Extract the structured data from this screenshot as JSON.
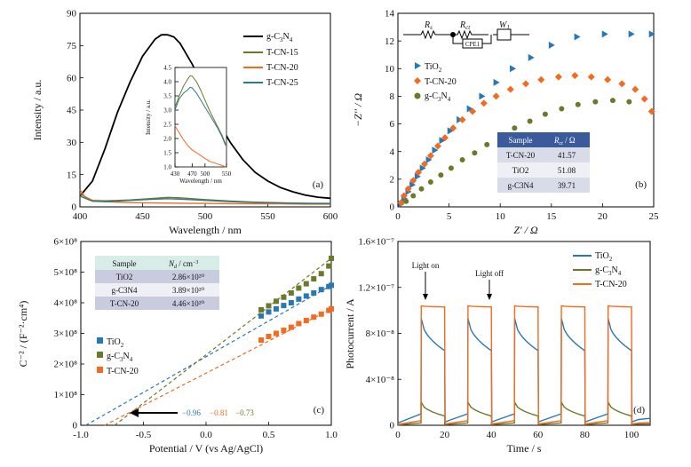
{
  "chart_data": [
    {
      "panel": "(a)",
      "type": "line",
      "xlabel": "Wavelength / nm",
      "ylabel": "Intensity / a.u.",
      "xlim": [
        400,
        600
      ],
      "ylim": [
        0,
        90
      ],
      "xticks": [
        "400",
        "450",
        "500",
        "550",
        "600"
      ],
      "yticks": [
        "0",
        "15",
        "30",
        "45",
        "60",
        "75",
        "90"
      ],
      "legend_position": "top-right",
      "legend": [
        "g-C3N4",
        "T-CN-15",
        "T-CN-20",
        "T-CN-25"
      ],
      "series": [
        {
          "name": "g-C3N4",
          "color": "#000000",
          "x": [
            400,
            410,
            420,
            430,
            440,
            450,
            460,
            465,
            470,
            475,
            480,
            490,
            500,
            510,
            520,
            530,
            540,
            550,
            560,
            570,
            580,
            590,
            600
          ],
          "y": [
            5,
            12,
            27,
            44,
            58,
            70,
            78,
            80,
            80,
            79,
            76,
            66,
            53,
            40,
            30,
            22,
            16,
            12,
            9,
            7,
            5.5,
            4.5,
            4
          ]
        },
        {
          "name": "T-CN-15",
          "color": "#6b7a2a",
          "x": [
            400,
            410,
            420,
            440,
            460,
            470,
            480,
            500,
            520,
            540,
            560,
            580,
            600
          ],
          "y": [
            6,
            3,
            2.8,
            3.2,
            4,
            4.4,
            4.2,
            3.4,
            2.7,
            2.2,
            1.9,
            1.7,
            1.6
          ]
        },
        {
          "name": "T-CN-20",
          "color": "#f26b21",
          "x": [
            400,
            404,
            410,
            420,
            440,
            460,
            480,
            500,
            520,
            540,
            560,
            580,
            600
          ],
          "y": [
            8,
            4.5,
            3,
            2.4,
            2,
            1.8,
            1.7,
            1.6,
            1.5,
            1.4,
            1.4,
            1.3,
            1.3
          ]
        },
        {
          "name": "T-CN-25",
          "color": "#2e7a87",
          "x": [
            400,
            410,
            420,
            440,
            460,
            470,
            480,
            500,
            520,
            540,
            560,
            580,
            600
          ],
          "y": [
            5,
            2.6,
            2.4,
            3,
            3.6,
            3.8,
            3.6,
            3,
            2.4,
            2,
            1.8,
            1.6,
            1.5
          ]
        }
      ],
      "inset": {
        "xlabel": "Wavelength / nm",
        "ylabel": "Intensity / a.u.",
        "xlim": [
          430,
          550
        ],
        "ylim": [
          1.0,
          4.5
        ],
        "xticks": [
          "430",
          "470",
          "500",
          "550"
        ],
        "yticks": [
          "1.0",
          "1.5",
          "2.0",
          "2.5",
          "3.0",
          "3.5",
          "4.0",
          "4.5"
        ],
        "series": [
          {
            "name": "T-CN-15",
            "color": "#6b7a2a",
            "x": [
              430,
              440,
              450,
              460,
              465,
              470,
              480,
              490,
              500,
              510,
              520,
              530,
              540,
              548
            ],
            "y": [
              3.1,
              3.5,
              3.85,
              4.1,
              4.2,
              4.2,
              4.0,
              3.7,
              3.35,
              3.0,
              2.7,
              2.4,
              2.1,
              1.8
            ]
          },
          {
            "name": "T-CN-25",
            "color": "#2e7a87",
            "x": [
              430,
              440,
              450,
              460,
              465,
              470,
              480,
              490,
              500,
              510,
              520,
              530,
              540,
              548
            ],
            "y": [
              3.0,
              3.4,
              3.6,
              3.72,
              3.8,
              3.78,
              3.6,
              3.35,
              3.1,
              2.85,
              2.6,
              2.35,
              2.05,
              1.75
            ]
          },
          {
            "name": "T-CN-20",
            "color": "#f26b21",
            "x": [
              430,
              440,
              450,
              460,
              470,
              480,
              490,
              500,
              510,
              520,
              530,
              540,
              548
            ],
            "y": [
              2.45,
              2.2,
              1.95,
              1.75,
              1.6,
              1.5,
              1.4,
              1.3,
              1.2,
              1.15,
              1.1,
              1.05,
              1.0
            ]
          }
        ]
      }
    },
    {
      "panel": "(b)",
      "type": "scatter",
      "xlabel": "Z′ / Ω",
      "ylabel": "−Z′′ / Ω",
      "xlim": [
        0,
        25
      ],
      "ylim": [
        0,
        14
      ],
      "xticks": [
        "0",
        "5",
        "10",
        "15",
        "20",
        "25"
      ],
      "yticks": [
        "0",
        "2",
        "4",
        "6",
        "8",
        "10",
        "12",
        "14"
      ],
      "legend": [
        "TiO2",
        "T-CN-20",
        "g-C3N4"
      ],
      "circuit_labels": [
        "R",
        "R",
        "W",
        "CPE1"
      ],
      "series": [
        {
          "name": "TiO2",
          "marker": "triangle",
          "color": "#2878b5",
          "x": [
            0.3,
            0.6,
            1,
            1.4,
            1.9,
            2.4,
            3,
            3.6,
            4.3,
            5.1,
            6,
            7,
            8.2,
            9.6,
            11.2,
            13,
            15,
            17.5,
            20.2,
            22.8,
            24.8
          ],
          "y": [
            0.2,
            0.6,
            1.1,
            1.6,
            2.2,
            2.8,
            3.4,
            4.1,
            4.8,
            5.5,
            6.3,
            7.1,
            8,
            9,
            10,
            10.8,
            11.7,
            12.3,
            12.5,
            12.5,
            12.5
          ]
        },
        {
          "name": "T-CN-20",
          "marker": "diamond",
          "color": "#f26b21",
          "x": [
            0.3,
            0.6,
            1,
            1.5,
            2,
            2.6,
            3.2,
            3.9,
            4.6,
            5.4,
            6.3,
            7.3,
            8.4,
            9.6,
            11,
            12.5,
            14,
            15.7,
            17.3,
            18.9,
            20.5,
            21.9,
            23.2,
            24.1,
            24.8
          ],
          "y": [
            0.3,
            0.8,
            1.3,
            1.9,
            2.5,
            3.1,
            3.7,
            4.4,
            5.0,
            5.7,
            6.3,
            6.9,
            7.5,
            8.0,
            8.5,
            8.9,
            9.2,
            9.4,
            9.5,
            9.4,
            9.2,
            8.9,
            8.5,
            7.8,
            6.9
          ]
        },
        {
          "name": "g-C3N4",
          "marker": "circle",
          "color": "#6b7a2a",
          "x": [
            0.8,
            1.5,
            2.3,
            3.2,
            4.2,
            5.2,
            6.3,
            7.5,
            8.7,
            10,
            11.4,
            12.9,
            14.4,
            16,
            17.6,
            19.3,
            21,
            22.6
          ],
          "y": [
            0.4,
            0.8,
            1.3,
            1.8,
            2.3,
            2.8,
            3.4,
            3.9,
            4.5,
            5.1,
            5.7,
            6.2,
            6.7,
            7.1,
            7.4,
            7.6,
            7.7,
            7.6
          ]
        }
      ],
      "table": {
        "headers": [
          "Sample",
          "Rct / Ω"
        ],
        "rows": [
          [
            "T-CN-20",
            "41.57"
          ],
          [
            "TiO2",
            "51.08"
          ],
          [
            "g-C3N4",
            "39.71"
          ]
        ]
      }
    },
    {
      "panel": "(c)",
      "type": "scatter",
      "xlabel": "Potential / V (vs Ag/AgCl)",
      "ylabel": "C⁻² / (F⁻²·cm⁴)",
      "xlim": [
        -1.0,
        1.0
      ],
      "ylim": [
        0,
        600000000.0
      ],
      "xticks": [
        "-1.0",
        "-0.5",
        "0.0",
        "0.5",
        "1.0"
      ],
      "yticks": [
        "0",
        "1×10⁸",
        "2×10⁸",
        "3×10⁸",
        "4×10⁸",
        "5×10⁸",
        "6×10⁸"
      ],
      "legend": [
        "TiO2",
        "g-C3N4",
        "T-CN-20"
      ],
      "intercepts": [
        {
          "label": "−0.96",
          "value": -0.96,
          "color": "#2878b5"
        },
        {
          "label": "−0.81",
          "value": -0.81,
          "color": "#f26b21"
        },
        {
          "label": "−0.73",
          "value": -0.73,
          "color": "#6b7a2a"
        }
      ],
      "series": [
        {
          "name": "TiO2",
          "color": "#2878b5",
          "x0": -0.96,
          "x": [
            0.44,
            0.5,
            0.56,
            0.62,
            0.68,
            0.74,
            0.8,
            0.86,
            0.92,
            0.98,
            1.0
          ],
          "y": [
            357000000.0,
            370000000.0,
            380000000.0,
            391000000.0,
            400000000.0,
            412000000.0,
            422000000.0,
            432000000.0,
            443000000.0,
            453000000.0,
            457000000.0
          ]
        },
        {
          "name": "g-C3N4",
          "color": "#6b7a2a",
          "x0": -0.73,
          "x": [
            0.44,
            0.5,
            0.56,
            0.62,
            0.68,
            0.74,
            0.8,
            0.86,
            0.92,
            0.98,
            1.0
          ],
          "y": [
            377000000.0,
            390000000.0,
            405000000.0,
            418000000.0,
            432000000.0,
            448000000.0,
            462000000.0,
            478000000.0,
            495000000.0,
            520000000.0,
            545000000.0
          ]
        },
        {
          "name": "T-CN-20",
          "color": "#f26b21",
          "x0": -0.81,
          "x": [
            0.44,
            0.5,
            0.56,
            0.62,
            0.68,
            0.74,
            0.8,
            0.86,
            0.92,
            0.98,
            1.0
          ],
          "y": [
            278000000.0,
            290000000.0,
            300000000.0,
            310000000.0,
            320000000.0,
            332000000.0,
            342000000.0,
            353000000.0,
            363000000.0,
            375000000.0,
            380000000.0
          ]
        }
      ],
      "table": {
        "headers": [
          "Sample",
          "Nd / cm⁻³"
        ],
        "rows": [
          [
            "TiO2",
            "2.86×10²⁰"
          ],
          [
            "g-C3N4",
            "3.89×10²⁰"
          ],
          [
            "T-CN-20",
            "4.46×10²⁰"
          ]
        ]
      }
    },
    {
      "panel": "(d)",
      "type": "line",
      "xlabel": "Time / s",
      "ylabel": "Photocurrent / A",
      "xlim": [
        0,
        108
      ],
      "ylim": [
        0,
        1.6e-07
      ],
      "xticks": [
        "0",
        "20",
        "40",
        "60",
        "80",
        "100"
      ],
      "yticks": [
        "0",
        "4×10⁻⁸",
        "8×10⁻⁸",
        "1.2×10⁻⁷",
        "1.6×10⁻⁷"
      ],
      "legend": [
        "TiO2",
        "g-C3N4",
        "T-CN-20"
      ],
      "annotations": [
        "Light on",
        "Light off"
      ],
      "on_periods": [
        [
          10,
          20
        ],
        [
          30,
          40
        ],
        [
          50,
          60
        ],
        [
          70,
          80
        ],
        [
          90,
          100
        ]
      ],
      "series": [
        {
          "name": "TiO2",
          "color": "#2878b5",
          "baseline": 1e-08,
          "on_start": 9.3e-08,
          "on_end": 6.5e-08
        },
        {
          "name": "g-C3N4",
          "color": "#6b7a2a",
          "baseline": 2e-09,
          "on_start": 2e-08,
          "on_end": 8e-09
        },
        {
          "name": "T-CN-20",
          "color": "#f26b21",
          "baseline": 4e-09,
          "on_start": 1.04e-07,
          "on_end": 1.03e-07
        }
      ]
    }
  ],
  "labels": {
    "a_legend": [
      "g-C",
      "N",
      "T-CN-15",
      "T-CN-20",
      "T-CN-25"
    ],
    "a_legend_sub": [
      "3",
      "4"
    ],
    "b_legend": [
      "TiO",
      "T-CN-20",
      "g-C",
      "N"
    ],
    "b_circuit": {
      "rs": "R",
      "rs_sub": "s",
      "rct": "R",
      "rct_sub": "ct",
      "w": "W",
      "w_sub": "1",
      "cpe": "CPE1"
    },
    "b_table_head": [
      "Sample",
      "R",
      "ct",
      " / Ω"
    ],
    "c_legend": [
      "TiO",
      "g-C",
      "N",
      "T-CN-20"
    ],
    "c_table_head": [
      "Sample",
      "N",
      "d",
      " / cm",
      "−3"
    ],
    "d_legend": [
      "TiO",
      "g-C",
      "N",
      "T-CN-20"
    ],
    "light_on": "Light on",
    "light_off": "Light off",
    "panel_a": "(a)",
    "panel_b": "(b)",
    "panel_c": "(c)",
    "panel_d": "(d)"
  }
}
